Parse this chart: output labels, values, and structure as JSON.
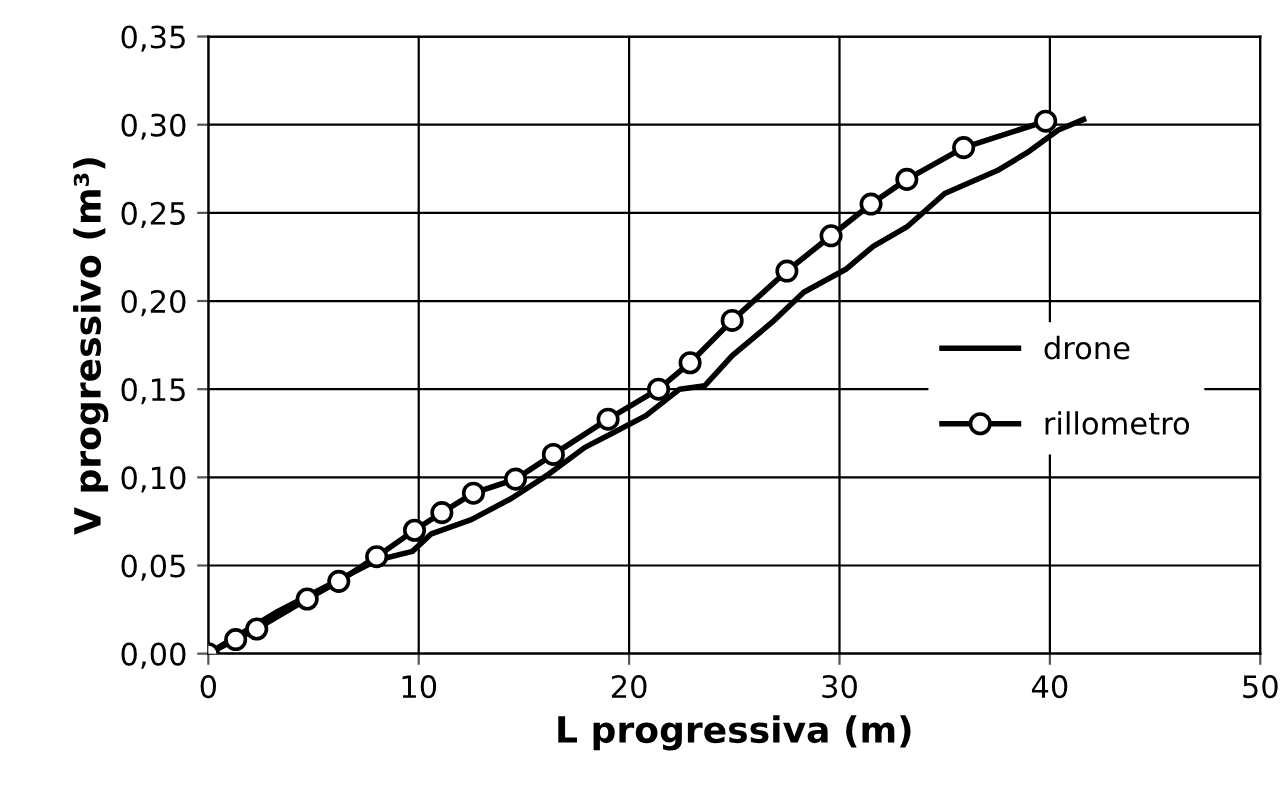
{
  "chart_data": {
    "type": "line",
    "xlabel": "L progressiva (m)",
    "ylabel": "V progressivo (m³)",
    "xlim": [
      0,
      50
    ],
    "xticks": [
      0,
      10,
      20,
      30,
      40,
      50
    ],
    "ylim": [
      0,
      0.35
    ],
    "yticks": [
      {
        "value": 0,
        "label": "0,00"
      },
      {
        "value": 0.05,
        "label": "0,05"
      },
      {
        "value": 0.1,
        "label": "0,10"
      },
      {
        "value": 0.15,
        "label": "0,15"
      },
      {
        "value": 0.2,
        "label": "0,20"
      },
      {
        "value": 0.25,
        "label": "0,25"
      },
      {
        "value": 0.3,
        "label": "0,30"
      },
      {
        "value": 0.35,
        "label": "0,35"
      }
    ],
    "grid": true,
    "legend": "right",
    "series": [
      {
        "name": "drone",
        "color": "#000000",
        "marker": "none",
        "x": [
          0,
          3.3,
          8.0,
          9.7,
          10.6,
          12.5,
          14.4,
          16.2,
          17.9,
          19.2,
          20.8,
          22.4,
          23.6,
          24.9,
          26.8,
          28.3,
          30.3,
          31.6,
          33.2,
          35.0,
          37.5,
          38.9,
          40.4,
          41.6
        ],
        "values": [
          0,
          0.024,
          0.053,
          0.058,
          0.068,
          0.076,
          0.088,
          0.102,
          0.117,
          0.125,
          0.135,
          0.15,
          0.152,
          0.169,
          0.188,
          0.205,
          0.218,
          0.231,
          0.242,
          0.261,
          0.274,
          0.284,
          0.297,
          0.303
        ]
      },
      {
        "name": "rillometro",
        "color": "#000000",
        "marker": "circle",
        "x": [
          0,
          1.3,
          2.3,
          4.7,
          6.2,
          8.0,
          9.8,
          11.1,
          12.6,
          14.6,
          16.4,
          19.0,
          21.4,
          22.9,
          24.9,
          27.5,
          29.6,
          31.5,
          33.2,
          35.9,
          39.8
        ],
        "values": [
          0,
          0.008,
          0.014,
          0.031,
          0.041,
          0.055,
          0.07,
          0.08,
          0.091,
          0.099,
          0.113,
          0.133,
          0.15,
          0.165,
          0.189,
          0.217,
          0.237,
          0.255,
          0.269,
          0.287,
          0.302
        ]
      }
    ]
  }
}
